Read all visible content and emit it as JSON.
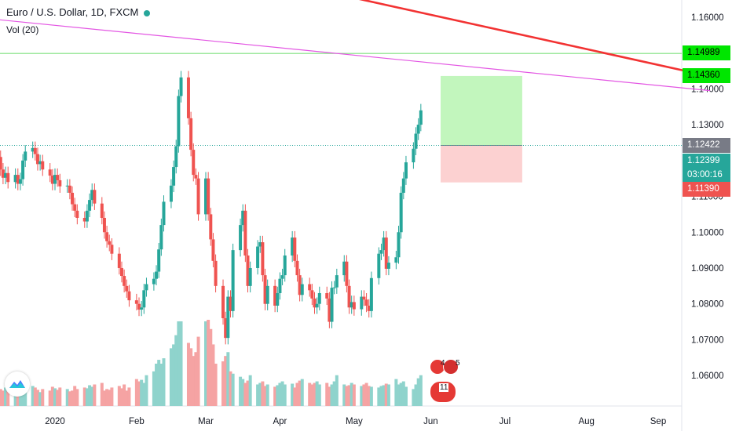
{
  "header": {
    "pair": "Euro / U.S. Dollar",
    "rest": ", 1D, FXCM",
    "indicator": "Vol (20)"
  },
  "price_badges": [
    {
      "value": "1.14989",
      "color": "#00e600",
      "text": "#000000",
      "price": 1.14989
    },
    {
      "value": "1.14360",
      "color": "#00e600",
      "text": "#000000",
      "price": 1.1436
    },
    {
      "value": "1.12422",
      "color": "#787b86",
      "text": "#ffffff",
      "price": 1.12422
    },
    {
      "value": "1.12399",
      "color": "#26a69a",
      "text": "#ffffff",
      "price": 1.12399
    },
    {
      "value": "03:00:16",
      "color": "#26a69a",
      "text": "#ffffff",
      "price": null
    },
    {
      "value": "1.11390",
      "color": "#ef5350",
      "text": "#ffffff",
      "price": 1.1139
    }
  ],
  "events": {
    "a": "4",
    "b": "5",
    "c": "11"
  },
  "chart_data": {
    "type": "candlestick",
    "y_ticks": [
      "1.16000",
      "1.15000",
      "1.14000",
      "1.13000",
      "1.12000",
      "1.11000",
      "1.10000",
      "1.09000",
      "1.08000",
      "1.07000",
      "1.06000"
    ],
    "x_ticks": [
      {
        "label": "2020",
        "date": "2020-01-01"
      },
      {
        "label": "Feb",
        "date": "2020-02-03"
      },
      {
        "label": "Mar",
        "date": "2020-03-02"
      },
      {
        "label": "Apr",
        "date": "2020-04-01"
      },
      {
        "label": "May",
        "date": "2020-05-01"
      },
      {
        "label": "Jun",
        "date": "2020-06-01"
      },
      {
        "label": "Jul",
        "date": "2020-07-01"
      },
      {
        "label": "Aug",
        "date": "2020-08-03"
      },
      {
        "label": "Sep",
        "date": "2020-09-01"
      }
    ],
    "ylim": [
      1.0515,
      1.1648
    ],
    "colors": {
      "up": "#26a69a",
      "down": "#ef5350",
      "vol_up": "#8fd3cc",
      "vol_down": "#f5a3a3"
    },
    "closes": [
      1.1128,
      1.1163,
      1.117,
      1.1158,
      1.1205,
      1.121,
      1.1175,
      1.1152,
      1.1165,
      1.114,
      1.116,
      1.1135,
      1.1148,
      1.12,
      1.1225,
      1.1235,
      1.1218,
      1.119,
      1.1198,
      1.1175,
      1.1158,
      1.1135,
      1.116,
      1.1145,
      1.1128,
      1.113,
      1.111,
      1.1078,
      1.106,
      1.104,
      1.103,
      1.106,
      1.109,
      1.1118,
      1.108,
      1.104,
      1.1,
      1.0975,
      1.0965,
      1.094,
      1.09,
      1.0878,
      1.085,
      1.0835,
      1.081,
      1.08,
      1.0784,
      1.079,
      1.0838,
      1.0855,
      1.087,
      1.089,
      1.0952,
      1.102,
      1.1085,
      1.113,
      1.1182,
      1.124,
      1.138,
      1.1432,
      1.1318,
      1.123,
      1.116,
      1.115,
      1.105,
      1.115,
      1.105,
      1.098,
      1.092,
      1.085,
      1.076,
      1.0705,
      1.082,
      1.078,
      1.095,
      1.102,
      1.106,
      1.0935,
      1.085,
      1.09,
      1.096,
      1.0972,
      1.088,
      1.08,
      1.085,
      1.0795,
      1.083,
      1.087,
      1.088,
      1.0935,
      1.0985,
      1.092,
      1.088,
      1.0825,
      1.0855,
      1.0838,
      1.0815,
      1.079,
      1.08,
      1.083,
      1.0815,
      1.075,
      1.0845,
      1.0846,
      1.088,
      1.0918,
      1.085,
      1.079,
      1.0805,
      1.0785,
      1.082,
      1.0812,
      1.0795,
      1.078,
      1.0872,
      1.094,
      1.095,
      1.0985,
      1.0898,
      1.0915,
      1.093,
      1.1,
      1.111,
      1.115,
      1.1195,
      1.1233,
      1.1275,
      1.13,
      1.134
    ],
    "volumes": [
      20,
      23,
      18,
      15,
      25,
      30,
      22,
      20,
      24,
      19,
      27,
      28,
      25,
      22,
      30,
      26,
      24,
      21,
      18,
      22,
      20,
      25,
      23,
      21,
      24,
      22,
      19,
      20,
      26,
      22,
      24,
      23,
      27,
      25,
      28,
      30,
      20,
      22,
      21,
      24,
      26,
      23,
      28,
      20,
      24,
      35,
      32,
      34,
      30,
      40,
      45,
      55,
      60,
      55,
      62,
      75,
      80,
      92,
      110,
      110,
      82,
      75,
      65,
      70,
      90,
      110,
      112,
      100,
      80,
      55,
      58,
      65,
      70,
      45,
      42,
      38,
      35,
      30,
      33,
      40,
      28,
      30,
      32,
      26,
      28,
      25,
      27,
      30,
      32,
      28,
      29,
      24,
      30,
      33,
      35,
      30,
      28,
      30,
      32,
      28,
      30,
      25,
      28,
      32,
      40,
      28,
      26,
      27,
      30,
      28,
      26,
      28,
      30,
      26,
      25,
      24,
      26,
      27,
      29,
      28,
      35,
      28,
      30,
      32,
      25,
      22,
      28,
      36,
      40
    ],
    "levels": [
      1.14989,
      1.12422
    ],
    "trendlines": [
      {
        "color": "#f23232",
        "from": [
          1.1739,
          "2020-03-06"
        ],
        "to": [
          1.1435,
          "2020-09-22"
        ],
        "width": 2.6
      },
      {
        "color": "#e356e3",
        "from": [
          1.1598,
          "2019-12-02"
        ],
        "to": [
          1.1395,
          "2020-09-22"
        ],
        "width": 1.2
      }
    ],
    "position": {
      "entry": 1.12422,
      "target": 1.1436,
      "stop": 1.1139,
      "start": "2020-06-05",
      "end": "2020-07-08"
    }
  }
}
